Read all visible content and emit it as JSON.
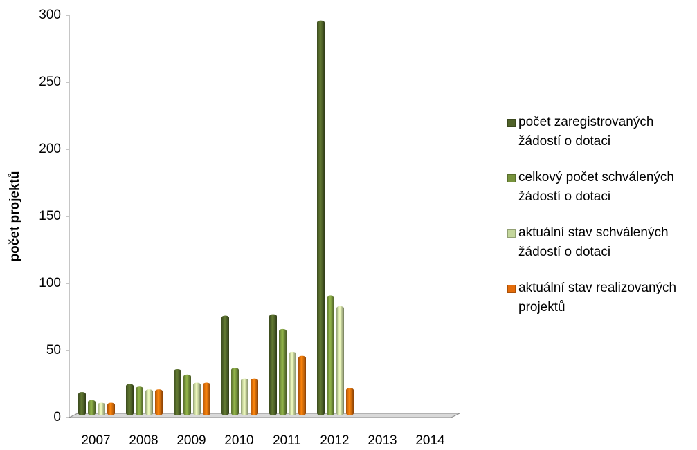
{
  "chart_data": {
    "type": "bar",
    "y_label": "počet projektů",
    "categories": [
      "2007",
      "2008",
      "2009",
      "2010",
      "2011",
      "2012",
      "2013",
      "2014"
    ],
    "series": [
      {
        "name": "počet zaregistrovaných žádostí o dotaci",
        "color": "#4f6228",
        "values": [
          17,
          23,
          34,
          74,
          75,
          294,
          0,
          0
        ]
      },
      {
        "name": "celkový počet schválených žádostí o dotaci",
        "color": "#77933c",
        "values": [
          11,
          21,
          30,
          35,
          64,
          89,
          0,
          0
        ]
      },
      {
        "name": "aktuální stav schválených žádostí o dotaci",
        "color": "#c3d69b",
        "values": [
          9,
          19,
          24,
          27,
          47,
          81,
          0,
          0
        ]
      },
      {
        "name": "aktuální stav realizovaných projektů",
        "color": "#e46c0a",
        "values": [
          9,
          19,
          24,
          27,
          44,
          20,
          0,
          0
        ]
      }
    ],
    "ylim": [
      0,
      300
    ],
    "yticks": [
      0,
      50,
      100,
      150,
      200,
      250,
      300
    ],
    "legend": "right"
  }
}
